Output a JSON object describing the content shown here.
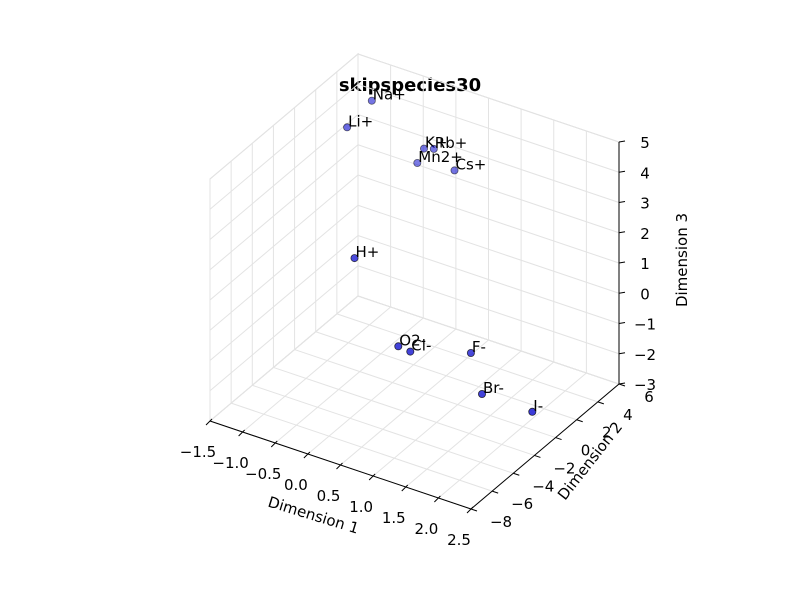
{
  "chart_data": {
    "type": "scatter",
    "title": "skipspecies30",
    "xlabel": "Dimension 1",
    "ylabel": "Dimension 2",
    "zlabel": "Dimension 3",
    "xlim": [
      -1.5,
      2.5
    ],
    "ylim": [
      -8,
      6
    ],
    "zlim": [
      -3,
      5
    ],
    "xticks": [
      "−1.5",
      "−1.0",
      "−0.5",
      "0.0",
      "0.5",
      "1.0",
      "1.5",
      "2.0",
      "2.5"
    ],
    "yticks": [
      "−8",
      "−6",
      "−4",
      "−2",
      "0",
      "2",
      "4",
      "6"
    ],
    "zticks": [
      "−3",
      "−2",
      "−1",
      "0",
      "1",
      "2",
      "3",
      "4",
      "5"
    ],
    "grid": true,
    "point_color": "#0000cc",
    "points": [
      {
        "label": "Na+",
        "x": -0.9,
        "y": 3.6,
        "z": 4.6
      },
      {
        "label": "Li+",
        "x": -1.1,
        "y": 2.5,
        "z": 3.9
      },
      {
        "label": "K+",
        "x": -0.1,
        "y": 3.6,
        "z": 3.6
      },
      {
        "label": "Rb+",
        "x": 0.05,
        "y": 3.6,
        "z": 3.7
      },
      {
        "label": "Cs+",
        "x": 0.4,
        "y": 3.4,
        "z": 3.3
      },
      {
        "label": "Mn2+",
        "x": -0.3,
        "y": 4.2,
        "z": 2.8
      },
      {
        "label": "H+",
        "x": -0.5,
        "y": -0.5,
        "z": 0.9
      },
      {
        "label": "O2-",
        "x": 0.3,
        "y": -1.3,
        "z": -1.2
      },
      {
        "label": "Cl-",
        "x": 0.5,
        "y": -1.4,
        "z": -1.2
      },
      {
        "label": "F-",
        "x": 1.3,
        "y": -0.6,
        "z": -0.9
      },
      {
        "label": "Br-",
        "x": 1.6,
        "y": -1.4,
        "z": -1.8
      },
      {
        "label": "I-",
        "x": 2.5,
        "y": -2.2,
        "z": -1.5
      }
    ]
  }
}
